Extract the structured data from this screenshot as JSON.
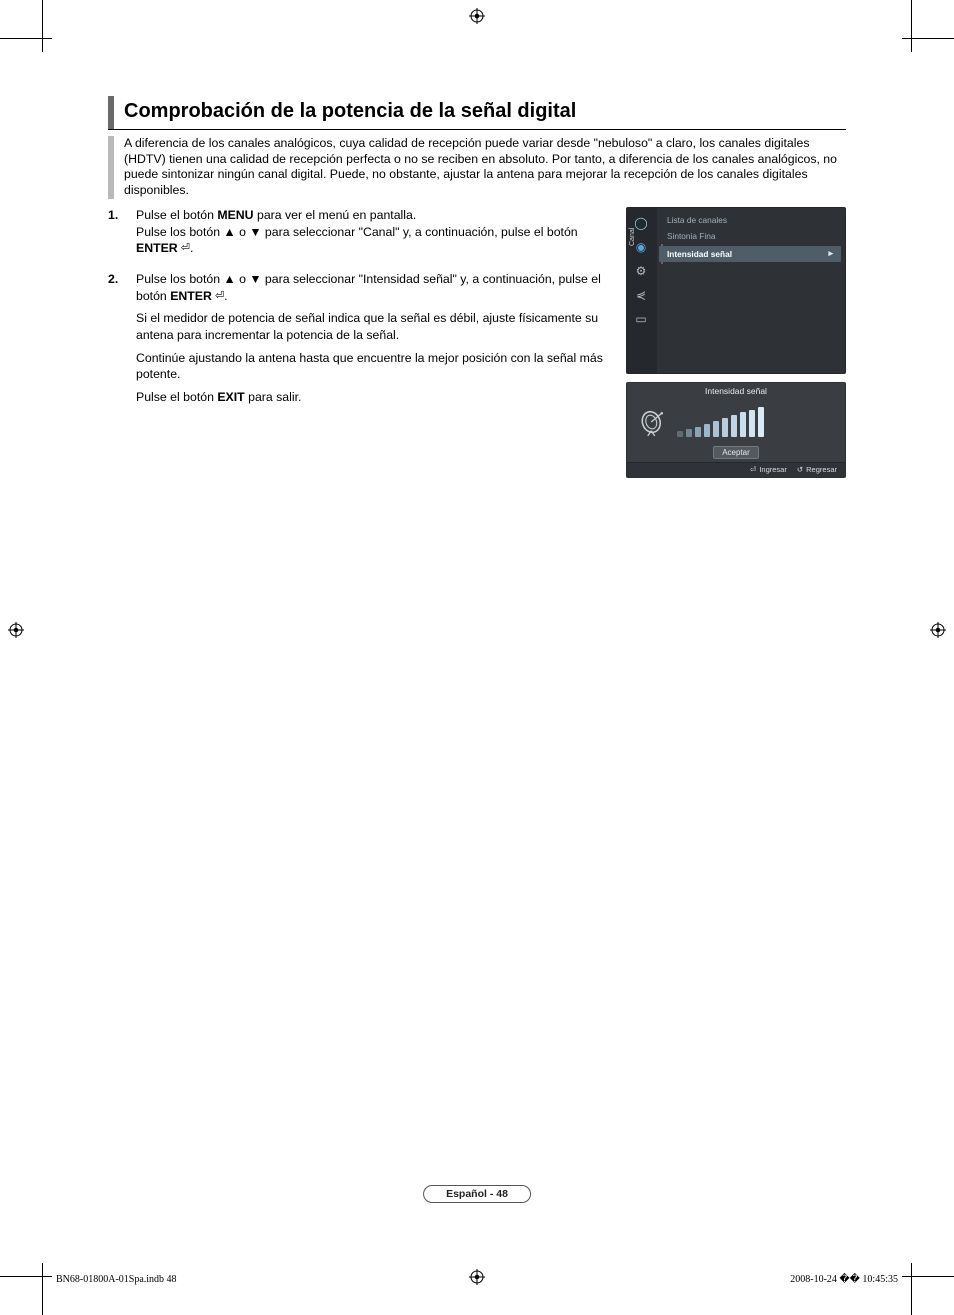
{
  "title": "Comprobación de la potencia de la señal digital",
  "intro": "A diferencia de los canales analógicos, cuya calidad de recepción puede variar desde \"nebuloso\" a claro, los canales digitales (HDTV) tienen una calidad de recepción perfecta o no se reciben en absoluto. Por tanto, a diferencia de los canales analógicos, no puede sintonizar ningún canal digital. Puede, no obstante, ajustar la antena para mejorar la recepción de los canales digitales disponibles.",
  "steps": {
    "s1": {
      "num": "1.",
      "p1a": "Pulse el botón ",
      "p1b": "MENU",
      "p1c": " para ver el menú en pantalla.",
      "p2a": "Pulse los botón ▲ o ▼ para seleccionar \"Canal\" y, a continuación, pulse el botón ",
      "p2b": "ENTER",
      "p2c": "."
    },
    "s2": {
      "num": "2.",
      "p1a": "Pulse los botón ▲ o ▼ para seleccionar \"Intensidad señal\" y, a continuación, pulse el botón ",
      "p1b": "ENTER",
      "p1c": ".",
      "p2": "Si el medidor de potencia de señal indica que la señal es débil, ajuste físicamente su antena para incrementar la potencia de la señal.",
      "p3": "Continúe ajustando la antena hasta que encuentre la mejor posición con la señal más potente.",
      "p4a": "Pulse el botón ",
      "p4b": "EXIT",
      "p4c": " para salir."
    }
  },
  "osd_menu": {
    "side_label": "Canal",
    "items": [
      {
        "label": "Lista de canales",
        "selected": false
      },
      {
        "label": "Sintonia Fina",
        "selected": false
      },
      {
        "label": "Intensidad señal",
        "selected": true
      }
    ],
    "chevron": "►",
    "bg": "#2e3135",
    "side_bg": "#25282c",
    "item_color": "#9fb3c2",
    "sel_bg": "#4e5d68",
    "sel_color": "#ffffff",
    "icon_color": "#b7bcc1"
  },
  "osd_signal": {
    "title": "Intensidad señal",
    "accept": "Aceptar",
    "footer_enter": "Ingresar",
    "footer_return": "Regresar",
    "bg": "#3a3e43",
    "footer_bg": "#2f3337",
    "bars": {
      "count": 10,
      "heights": [
        6,
        8,
        10,
        13,
        16,
        19,
        22,
        25,
        27,
        30
      ],
      "colors": [
        "#666b70",
        "#728694",
        "#8aa4b6",
        "#9bb7c9",
        "#a9c3d4",
        "#b5cdde",
        "#c0d6e5",
        "#cadeeb",
        "#d3e5f0",
        "#dbebf5"
      ]
    }
  },
  "page_badge": "Español - 48",
  "footer": {
    "left": "BN68-01800A-01Spa.indb   48",
    "right": "2008-10-24   �� 10:45:35"
  },
  "colors": {
    "title_bar": "#6a6a6a",
    "intro_bar": "#b9b9b9",
    "text": "#000000"
  }
}
